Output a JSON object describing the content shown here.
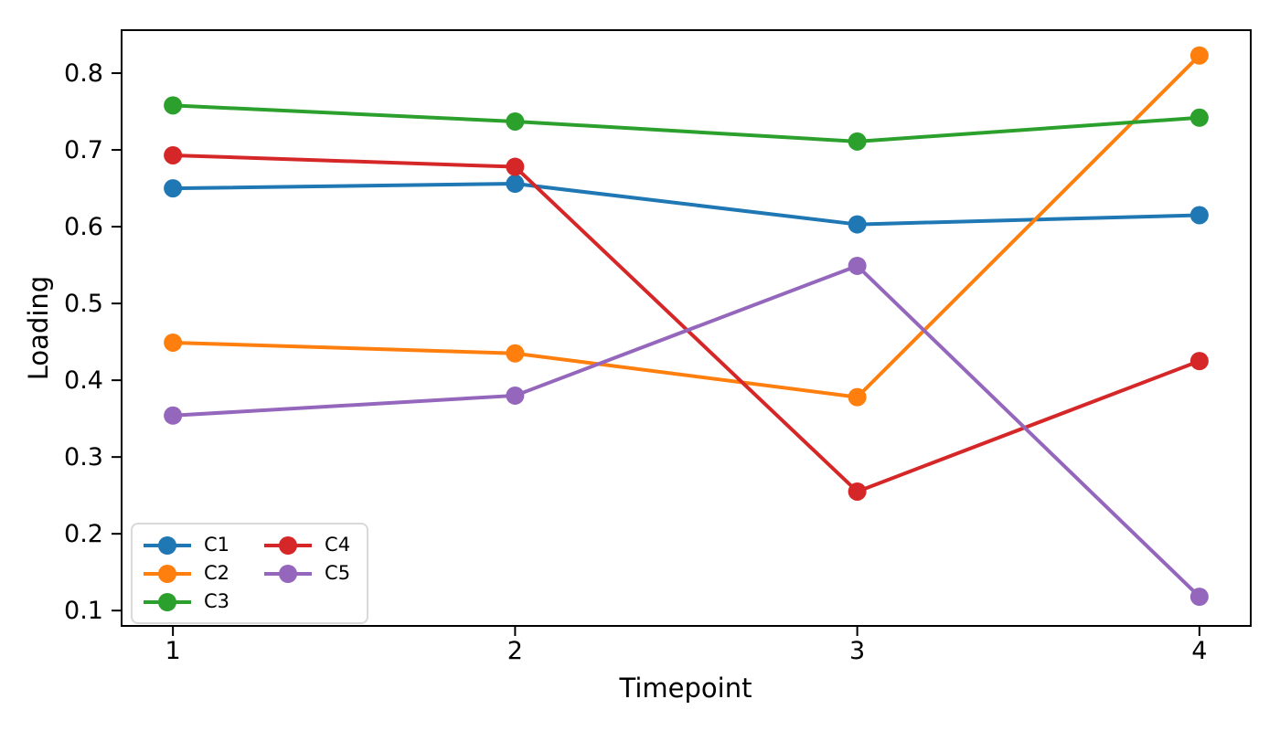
{
  "figure": {
    "background": "#ffffff",
    "axis_color": "#000000"
  },
  "chart_data": {
    "type": "line",
    "title": "",
    "xlabel": "Timepoint",
    "ylabel": "Loading",
    "x": [
      1,
      2,
      3,
      4
    ],
    "series": [
      {
        "name": "C1",
        "color": "#1f77b4",
        "values": [
          0.65,
          0.656,
          0.603,
          0.615
        ]
      },
      {
        "name": "C2",
        "color": "#ff7f0e",
        "values": [
          0.449,
          0.435,
          0.378,
          0.823
        ]
      },
      {
        "name": "C3",
        "color": "#2ca02c",
        "values": [
          0.758,
          0.737,
          0.711,
          0.742
        ]
      },
      {
        "name": "C4",
        "color": "#d62728",
        "values": [
          0.693,
          0.678,
          0.255,
          0.425
        ]
      },
      {
        "name": "C5",
        "color": "#9467bd",
        "values": [
          0.354,
          0.38,
          0.549,
          0.118
        ]
      }
    ],
    "xticks": {
      "values": [
        1,
        2,
        3,
        4
      ],
      "labels": [
        "1",
        "2",
        "3",
        "4"
      ]
    },
    "yticks": {
      "values": [
        0.1,
        0.2,
        0.3,
        0.4,
        0.5,
        0.6,
        0.7,
        0.8
      ],
      "labels": [
        "0.1",
        "0.2",
        "0.3",
        "0.4",
        "0.5",
        "0.6",
        "0.7",
        "0.8"
      ]
    },
    "xlim": [
      0.85,
      4.15
    ],
    "ylim": [
      0.08,
      0.856
    ],
    "grid": false,
    "legend": {
      "position": "lower-left",
      "columns": 2,
      "entries": [
        "C1",
        "C2",
        "C3",
        "C4",
        "C5"
      ]
    }
  }
}
